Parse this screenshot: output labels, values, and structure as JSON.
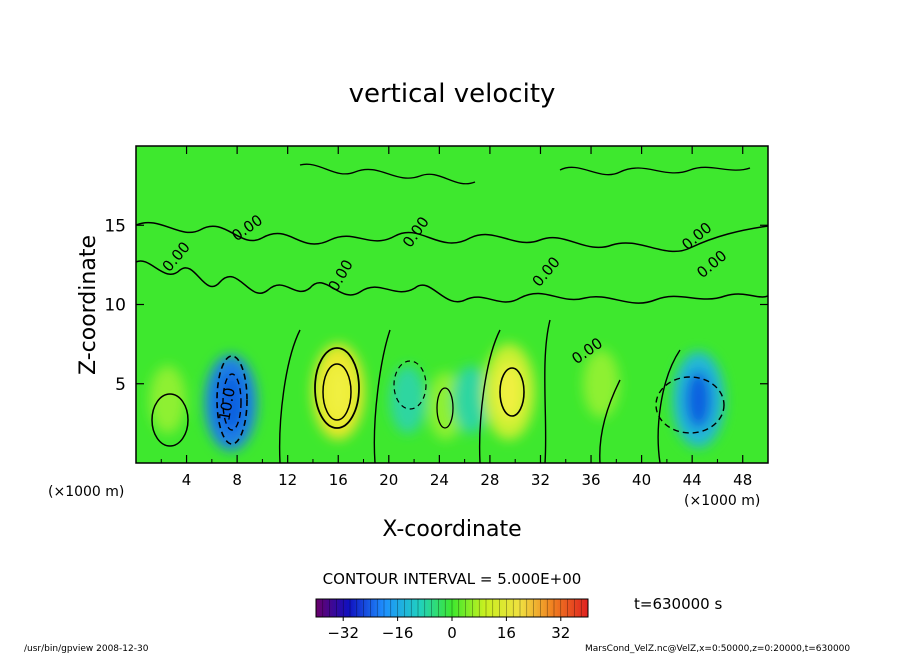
{
  "chart_data": {
    "type": "heatmap",
    "title": "vertical velocity",
    "xlabel": "X-coordinate",
    "ylabel": "Z-coordinate",
    "x_unit_left": "(×1000 m)",
    "x_unit_right": "(×1000 m)",
    "xlim": [
      0,
      50
    ],
    "ylim": [
      0,
      20
    ],
    "x_ticks": [
      "4",
      "8",
      "12",
      "16",
      "20",
      "24",
      "28",
      "32",
      "36",
      "40",
      "44",
      "48"
    ],
    "y_ticks": [
      "5",
      "10",
      "15"
    ],
    "contour_interval_text": "CONTOUR INTERVAL = 5.000E+00",
    "contour_labels": [
      "0.00",
      "0.00",
      "0.00",
      "0.00",
      "0.00",
      "0.00",
      "0.00",
      "0.00",
      "10.0"
    ],
    "colorbar": {
      "min": -40,
      "max": 40,
      "tick_labels": [
        "−32",
        "−16",
        "0",
        "16",
        "32"
      ],
      "tick_values": [
        -32,
        -16,
        0,
        16,
        32
      ]
    },
    "time_label": "t=630000 s",
    "features": [
      {
        "x": 2.5,
        "z": 4.0,
        "value": 8
      },
      {
        "x": 7.5,
        "z": 3.8,
        "value": -24
      },
      {
        "x": 16.0,
        "z": 4.5,
        "value": 18
      },
      {
        "x": 21.5,
        "z": 4.0,
        "value": -10
      },
      {
        "x": 24.5,
        "z": 3.6,
        "value": 8
      },
      {
        "x": 26.5,
        "z": 4.0,
        "value": -8
      },
      {
        "x": 29.5,
        "z": 4.5,
        "value": 14
      },
      {
        "x": 44.5,
        "z": 4.0,
        "value": -14
      },
      {
        "x": 36.8,
        "z": 5.0,
        "value": 4
      }
    ]
  },
  "footer": {
    "left": "/usr/bin/gpview  2008-12-30",
    "right": "MarsCond_VelZ.nc@VelZ,x=0:50000,z=0:20000,t=630000"
  },
  "colors": {
    "field_base": "#3ee82e",
    "axis": "#000000"
  }
}
